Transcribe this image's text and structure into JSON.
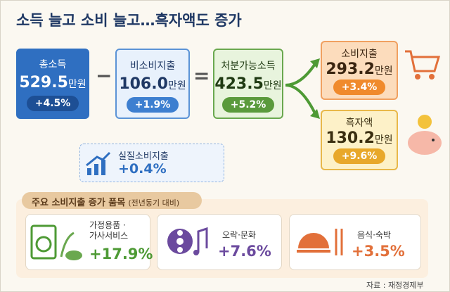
{
  "title": "소득 늘고 소비 늘고…흑자액도 증가",
  "flow": {
    "income": {
      "label": "총소득",
      "amount": "529.5",
      "unit": "만원",
      "change": "+4.5%"
    },
    "minus": "−",
    "nonconsumption": {
      "label": "비소비지출",
      "amount": "106.0",
      "unit": "만원",
      "change": "+1.9%"
    },
    "equals": "=",
    "disposable": {
      "label": "처분가능소득",
      "amount": "423.5",
      "unit": "만원",
      "change": "+5.2%"
    },
    "consumption": {
      "label": "소비지출",
      "amount": "293.2",
      "unit": "만원",
      "change": "+3.4%"
    },
    "surplus": {
      "label": "흑자액",
      "amount": "130.2",
      "unit": "만원",
      "change": "+9.6%"
    }
  },
  "real_consumption": {
    "label": "실질소비지출",
    "change": "+0.4%"
  },
  "items": {
    "title": "주요 소비지출 증가 품목",
    "note": "(전년동기 대비)",
    "list": [
      {
        "label": [
          "가정용품 ·",
          "가사서비스"
        ],
        "change": "+17.9%"
      },
      {
        "label": [
          "오락·문화"
        ],
        "change": "+7.6%"
      },
      {
        "label": [
          "음식·숙박"
        ],
        "change": "+3.5%"
      }
    ]
  },
  "source": "자료 : 재정경제부"
}
